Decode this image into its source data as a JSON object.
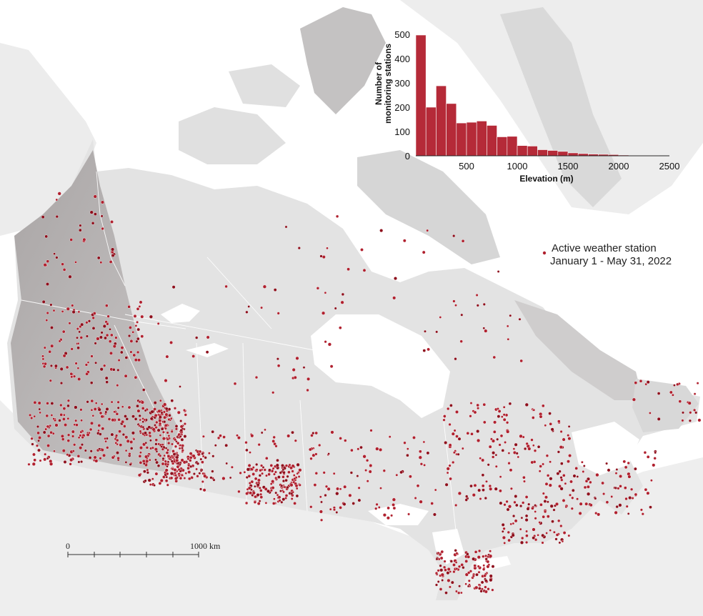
{
  "legend": {
    "line1": "Active weather station",
    "line2": "January 1 - May 31, 2022",
    "dot_color": "#b0202e"
  },
  "scale_bar": {
    "start_label": "0",
    "end_label": "1000 km"
  },
  "colors": {
    "station": "#b0202e",
    "station_dense": "#8e0f1c",
    "land": "#e4e4e4",
    "land_mountain": "#b3b0b0",
    "water": "#ffffff",
    "bar": "#b52a38"
  },
  "chart_data": {
    "type": "bar",
    "xlabel": "Elevation (m)",
    "ylabel_line1": "Number of",
    "ylabel_line2": "monitoring stations",
    "xlim": [
      0,
      2500
    ],
    "ylim": [
      0,
      500
    ],
    "xticks": [
      500,
      1000,
      1500,
      2000,
      2500
    ],
    "yticks": [
      0,
      100,
      200,
      300,
      400,
      500
    ],
    "bin_width": 100,
    "bin_starts": [
      0,
      100,
      200,
      300,
      400,
      500,
      600,
      700,
      800,
      900,
      1000,
      1100,
      1200,
      1300,
      1400,
      1500,
      1600,
      1700,
      1800,
      1900,
      2000,
      2100,
      2200,
      2300,
      2400
    ],
    "values": [
      497,
      200,
      288,
      215,
      135,
      138,
      143,
      125,
      78,
      80,
      42,
      40,
      25,
      22,
      18,
      12,
      9,
      7,
      6,
      5,
      3,
      2,
      2,
      2,
      1
    ],
    "grid": false,
    "legend": "none"
  }
}
